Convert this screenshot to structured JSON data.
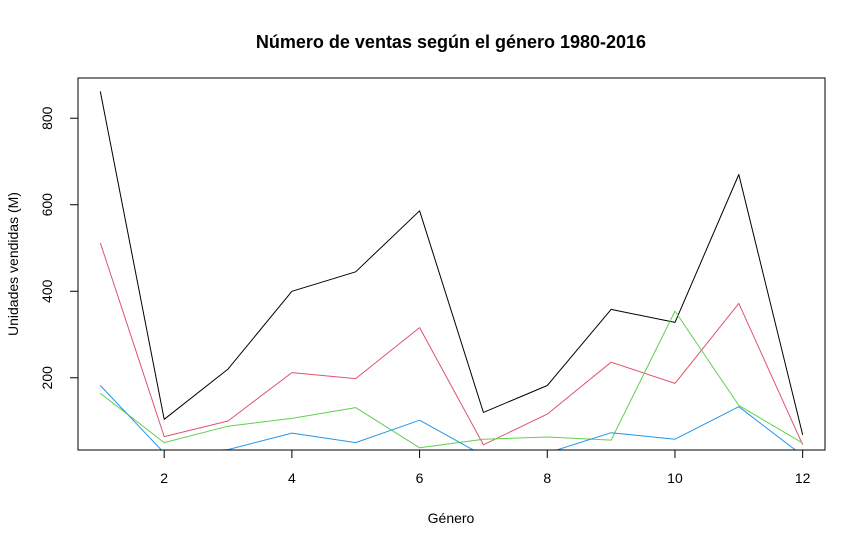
{
  "chart_data": {
    "type": "line",
    "title": "Número de ventas según el género 1980-2016",
    "xlabel": "Género",
    "ylabel": "Unidades vendidas (M)",
    "xlim": [
      0.65,
      12.35
    ],
    "ylim": [
      33,
      893
    ],
    "xticks": [
      2,
      4,
      6,
      8,
      10,
      12
    ],
    "yticks": [
      200,
      400,
      600,
      800
    ],
    "grid": false,
    "legend": "none",
    "x": [
      1,
      2,
      3,
      4,
      5,
      6,
      7,
      8,
      9,
      10,
      11,
      12
    ],
    "series": [
      {
        "color": "#000000",
        "values": [
          862,
          104,
          220,
          400,
          445,
          586,
          120,
          182,
          358,
          328,
          670,
          68
        ]
      },
      {
        "color": "#DF536B",
        "values": [
          512,
          64,
          100,
          212,
          198,
          316,
          45,
          116,
          236,
          187,
          372,
          45
        ]
      },
      {
        "color": "#61D04F",
        "values": [
          164,
          50,
          88,
          106,
          131,
          38,
          58,
          63,
          56,
          354,
          136,
          49
        ]
      },
      {
        "color": "#2297E6",
        "values": [
          182,
          26,
          34,
          72,
          50,
          102,
          20,
          26,
          73,
          58,
          133,
          20
        ]
      }
    ]
  }
}
